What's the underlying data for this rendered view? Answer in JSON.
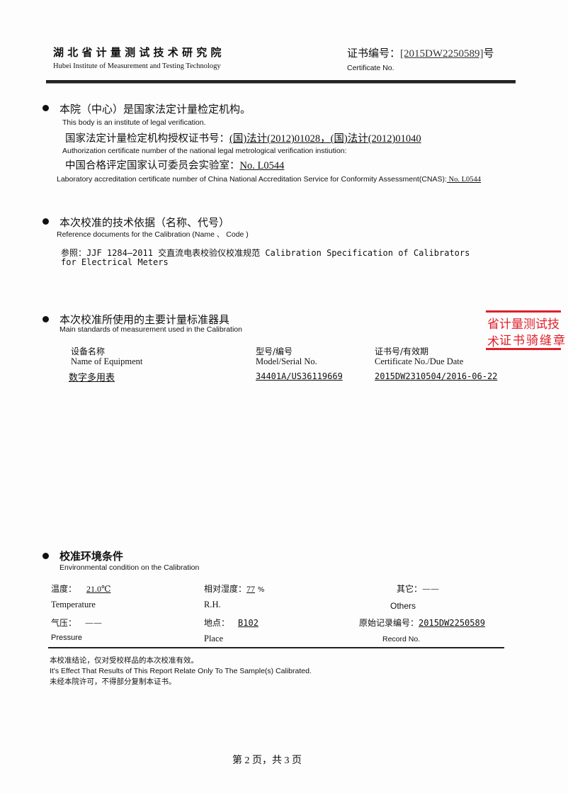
{
  "header": {
    "institute_cn": "湖 北 省 计 量 测 试 技 术 研 究 院",
    "institute_en": "Hubei Institute of Measurement and Testing Technology",
    "cert_label_cn": "证书编号：",
    "cert_no": "[2015DW2250589]",
    "cert_suffix": "号",
    "cert_label_en": "Certificate No."
  },
  "section1": {
    "title": "本院（中心）是国家法定计量检定机构。",
    "subtitle": "This body is an institute  of  legal  verification.",
    "auth_label": "国家法定计量检定机构授权证书号：",
    "auth_value": "(国)法计(2012)01028，(国)法计(2012)01040",
    "auth_en": "Authorization certificate number of the national legal metrological verification instiution:",
    "cnas_label": "中国合格评定国家认可委员会实验室：",
    "cnas_value": "No. L0544",
    "cnas_en": "Laboratory accreditation certificate number of China National Accreditation Service for Conformity Assessment(CNAS):",
    "cnas_en_value": " No. L0544"
  },
  "section2": {
    "title": "本次校准的技术依据（名称、代号）",
    "subtitle": "Reference documents for the Calibration (Name 、 Code )",
    "line1": "参照：JJF 1284—2011 交直流电表校验仪校准规范    Calibration Specification of Calibrators",
    "line2": "for Electrical Meters"
  },
  "section3": {
    "title": "本次校准所使用的主要计量标准器具",
    "subtitle": "Main standards of measurement used in the Calibration",
    "columns": [
      {
        "cn": "设备名称",
        "en": "Name of Equipment"
      },
      {
        "cn": "型号/编号",
        "en": "Model/Serial No."
      },
      {
        "cn": "证书号/有效期",
        "en": "Certificate No./Due Date"
      }
    ],
    "rows": [
      [
        "数字多用表",
        "34401A/US36119669",
        "2015DW2310504/2016-06-22"
      ]
    ]
  },
  "stamp": {
    "line1": "省计量测试技术",
    "line2": "证书骑缝章",
    "color": "#e0202a"
  },
  "section4": {
    "title": "校准环境条件",
    "subtitle": "Environmental condition on the Calibration",
    "temp_cn": "温度：",
    "temp_value": "21.0℃",
    "temp_en": "Temperature",
    "rh_cn": "相对湿度：",
    "rh_value": "77",
    "rh_unit": "%",
    "rh_en": "R.H.",
    "others_cn": "其它：",
    "others_value": "——",
    "others_en": "Others",
    "pressure_cn": "气压：",
    "pressure_value": "——",
    "pressure_en": "Pressure",
    "place_cn": "地点：",
    "place_value": "B102",
    "place_en": "Place",
    "record_cn": "原始记录编号：",
    "record_value": "2015DW2250589",
    "record_en": "Record No."
  },
  "footer": {
    "note1": "本校准结论，仅对受校样品的本次校准有效。",
    "note2": "It's Effect That Results  of This Report Relate Only To The Sample(s) Calibrated.",
    "note3": "未经本院许可，不得部分复制本证书。",
    "page": "第 2 页，共 3 页"
  }
}
